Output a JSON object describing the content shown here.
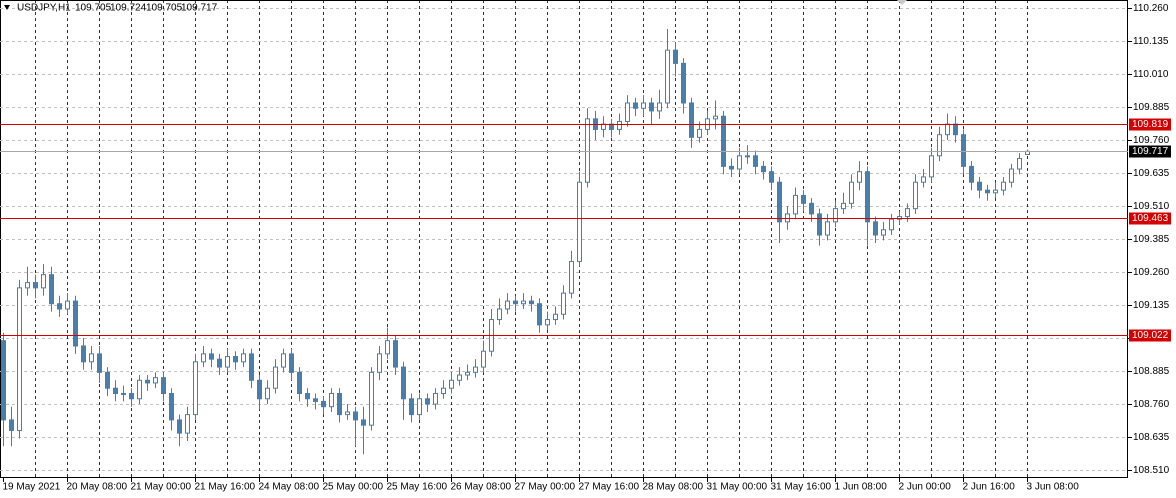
{
  "chart_data": {
    "type": "candlestick",
    "series": [
      {
        "name": "USDJPY,H1",
        "color": "#4a7ea8",
        "open": [
          109.0,
          108.7,
          108.66,
          109.2,
          109.22,
          109.2,
          109.25,
          109.14,
          109.12,
          109.15,
          108.98,
          108.92,
          108.95,
          108.88,
          108.82,
          108.8,
          108.8,
          108.78,
          108.85,
          108.84,
          108.86,
          108.8,
          108.7,
          108.65,
          108.72,
          108.92,
          108.95,
          108.93,
          108.9,
          108.94,
          108.92,
          108.95,
          108.85,
          108.78,
          108.82,
          108.9,
          108.95,
          108.88,
          108.8,
          108.78,
          108.77,
          108.75,
          108.8,
          108.72,
          108.73,
          108.7,
          108.68,
          108.88,
          108.95,
          109.0,
          108.9,
          108.78,
          108.72,
          108.78,
          108.76,
          108.8,
          108.82,
          108.85,
          108.87,
          108.88,
          108.9,
          108.96,
          109.08,
          109.12,
          109.15,
          109.14,
          109.15,
          109.14,
          109.06,
          109.08,
          109.1,
          109.18,
          109.3,
          109.6,
          109.84,
          109.8,
          109.82,
          109.8,
          109.83,
          109.9,
          109.88,
          109.9,
          109.87,
          109.9,
          110.1,
          110.05,
          109.9,
          109.77,
          109.8,
          109.84,
          109.85,
          109.66,
          109.65,
          109.7,
          109.7,
          109.66,
          109.64,
          109.6,
          109.45,
          109.48,
          109.55,
          109.52,
          109.48,
          109.4,
          109.45,
          109.5,
          109.52,
          109.6,
          109.64,
          109.45,
          109.4,
          109.42,
          109.46,
          109.47,
          109.5,
          109.6,
          109.62,
          109.7,
          109.78,
          109.82,
          109.78,
          109.66,
          109.6,
          109.57,
          109.56,
          109.57,
          109.6,
          109.65,
          109.705
        ],
        "high": [
          109.03,
          108.75,
          109.23,
          109.28,
          109.25,
          109.29,
          109.28,
          109.17,
          109.18,
          109.17,
          109.01,
          108.98,
          108.98,
          108.9,
          108.85,
          108.83,
          108.82,
          108.87,
          108.87,
          108.88,
          108.88,
          108.82,
          108.72,
          108.75,
          108.95,
          108.98,
          108.97,
          108.95,
          108.97,
          108.96,
          108.97,
          108.97,
          108.87,
          108.85,
          108.93,
          108.97,
          108.97,
          108.9,
          108.82,
          108.8,
          108.79,
          108.82,
          108.82,
          108.76,
          108.75,
          108.75,
          108.9,
          108.98,
          109.05,
          109.02,
          108.92,
          108.8,
          108.8,
          108.8,
          108.82,
          108.85,
          108.88,
          108.9,
          108.91,
          108.93,
          109.0,
          109.12,
          109.16,
          109.18,
          109.17,
          109.18,
          109.17,
          109.16,
          109.11,
          109.13,
          109.21,
          109.34,
          109.64,
          109.88,
          109.87,
          109.85,
          109.84,
          109.86,
          109.93,
          109.92,
          109.93,
          109.92,
          109.95,
          110.18,
          110.13,
          110.07,
          109.92,
          109.83,
          109.87,
          109.91,
          109.87,
          109.69,
          109.73,
          109.74,
          109.72,
          109.68,
          109.66,
          109.62,
          109.51,
          109.58,
          109.57,
          109.54,
          109.5,
          109.48,
          109.53,
          109.56,
          109.63,
          109.68,
          109.66,
          109.47,
          109.45,
          109.48,
          109.49,
          109.52,
          109.63,
          109.65,
          109.73,
          109.81,
          109.86,
          109.85,
          109.8,
          109.68,
          109.62,
          109.59,
          109.6,
          109.62,
          109.67,
          109.71,
          109.724
        ],
        "low": [
          108.6,
          108.6,
          108.63,
          109.17,
          109.16,
          109.17,
          109.11,
          109.09,
          109.1,
          108.95,
          108.89,
          108.89,
          108.84,
          108.79,
          108.77,
          108.77,
          108.75,
          108.76,
          108.81,
          108.82,
          108.77,
          108.66,
          108.6,
          108.62,
          108.7,
          108.9,
          108.9,
          108.87,
          108.88,
          108.89,
          108.9,
          108.82,
          108.74,
          108.76,
          108.8,
          108.88,
          108.85,
          108.77,
          108.75,
          108.74,
          108.72,
          108.73,
          108.69,
          108.7,
          108.6,
          108.57,
          108.66,
          108.85,
          108.93,
          108.87,
          108.7,
          108.69,
          108.7,
          108.73,
          108.74,
          108.78,
          108.8,
          108.83,
          108.85,
          108.86,
          108.88,
          108.94,
          109.06,
          109.1,
          109.11,
          109.12,
          109.11,
          109.03,
          109.04,
          109.06,
          109.08,
          109.16,
          109.28,
          109.58,
          109.76,
          109.77,
          109.77,
          109.78,
          109.81,
          109.85,
          109.85,
          109.82,
          109.84,
          109.88,
          110.0,
          109.86,
          109.73,
          109.75,
          109.78,
          109.8,
          109.63,
          109.62,
          109.63,
          109.67,
          109.63,
          109.61,
          109.57,
          109.37,
          109.42,
          109.46,
          109.49,
          109.45,
          109.36,
          109.38,
          109.43,
          109.48,
          109.5,
          109.57,
          109.36,
          109.37,
          109.38,
          109.4,
          109.44,
          109.45,
          109.48,
          109.58,
          109.6,
          109.68,
          109.76,
          109.75,
          109.63,
          109.57,
          109.54,
          109.53,
          109.54,
          109.55,
          109.58,
          109.63,
          109.705
        ],
        "close": [
          108.7,
          108.66,
          109.2,
          109.22,
          109.2,
          109.25,
          109.14,
          109.12,
          109.15,
          108.98,
          108.92,
          108.95,
          108.88,
          108.82,
          108.8,
          108.8,
          108.78,
          108.85,
          108.84,
          108.86,
          108.8,
          108.7,
          108.65,
          108.72,
          108.92,
          108.95,
          108.93,
          108.9,
          108.94,
          108.92,
          108.95,
          108.85,
          108.78,
          108.82,
          108.9,
          108.95,
          108.88,
          108.8,
          108.78,
          108.77,
          108.75,
          108.8,
          108.72,
          108.73,
          108.7,
          108.68,
          108.88,
          108.95,
          109.0,
          108.9,
          108.78,
          108.72,
          108.78,
          108.76,
          108.8,
          108.82,
          108.85,
          108.87,
          108.88,
          108.9,
          108.96,
          109.08,
          109.12,
          109.15,
          109.14,
          109.15,
          109.14,
          109.06,
          109.08,
          109.1,
          109.18,
          109.3,
          109.6,
          109.84,
          109.8,
          109.82,
          109.8,
          109.83,
          109.9,
          109.88,
          109.9,
          109.87,
          109.9,
          110.1,
          110.05,
          109.9,
          109.77,
          109.8,
          109.84,
          109.85,
          109.66,
          109.65,
          109.7,
          109.7,
          109.66,
          109.64,
          109.6,
          109.45,
          109.48,
          109.55,
          109.52,
          109.48,
          109.4,
          109.45,
          109.5,
          109.52,
          109.6,
          109.64,
          109.45,
          109.4,
          109.42,
          109.46,
          109.47,
          109.5,
          109.6,
          109.62,
          109.7,
          109.78,
          109.82,
          109.78,
          109.66,
          109.6,
          109.57,
          109.56,
          109.57,
          109.6,
          109.65,
          109.69,
          109.717
        ]
      }
    ],
    "categories": [
      "19 May 2021",
      null,
      null,
      null,
      null,
      null,
      null,
      null,
      "20 May 08:00",
      null,
      null,
      null,
      null,
      null,
      null,
      null,
      "21 May 00:00",
      null,
      null,
      null,
      null,
      null,
      null,
      null,
      "21 May 16:00",
      null,
      null,
      null,
      null,
      null,
      null,
      null,
      "24 May 08:00",
      null,
      null,
      null,
      null,
      null,
      null,
      null,
      "25 May 00:00",
      null,
      null,
      null,
      null,
      null,
      null,
      null,
      "25 May 16:00",
      null,
      null,
      null,
      null,
      null,
      null,
      null,
      "26 May 08:00",
      null,
      null,
      null,
      null,
      null,
      null,
      null,
      "27 May 00:00",
      null,
      null,
      null,
      null,
      null,
      null,
      null,
      "27 May 16:00",
      null,
      null,
      null,
      null,
      null,
      null,
      null,
      "28 May 08:00",
      null,
      null,
      null,
      null,
      null,
      null,
      null,
      "31 May 00:00",
      null,
      null,
      null,
      null,
      null,
      null,
      null,
      "31 May 16:00",
      null,
      null,
      null,
      null,
      null,
      null,
      null,
      "1 Jun 08:00",
      null,
      null,
      null,
      null,
      null,
      null,
      null,
      "2 Jun 00:00",
      null,
      null,
      null,
      null,
      null,
      null,
      null,
      "2 Jun 16:00",
      null,
      null,
      null,
      null,
      null,
      null,
      null,
      "3 Jun 08:00"
    ],
    "ylim": [
      108.48,
      110.29
    ],
    "yticks": [
      {
        "value": 110.26,
        "label": "110.260"
      },
      110.135,
      {
        "value": 110.01,
        "label": "110.010"
      },
      109.885,
      {
        "value": 109.76,
        "label": "109.760"
      },
      109.635,
      {
        "value": 109.51,
        "label": "109.510"
      },
      109.385,
      {
        "value": 109.26,
        "label": "109.260"
      },
      109.135,
      {
        "value": 109.01,
        "label": "109.010"
      },
      108.885,
      {
        "value": 108.76,
        "label": "108.760"
      },
      108.635,
      {
        "value": 108.51,
        "label": "108.510"
      }
    ],
    "grid": true,
    "levels": [
      {
        "value": 109.819,
        "color": "#d40000"
      },
      {
        "value": 109.463,
        "color": "#d40000"
      },
      {
        "value": 109.022,
        "color": "#d40000"
      }
    ],
    "current_price_color": "#a8a8a8"
  }
}
